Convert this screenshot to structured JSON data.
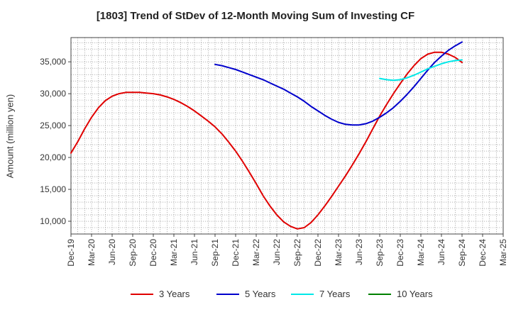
{
  "chart_data": {
    "type": "line",
    "title": "[1803]  Trend of StDev of 12-Month Moving Sum of Investing CF",
    "xlabel": "",
    "ylabel": "Amount (million yen)",
    "ylim": [
      8000,
      38800
    ],
    "yticks": [
      10000,
      15000,
      20000,
      25000,
      30000,
      35000
    ],
    "ytick_labels": [
      "10,000",
      "15,000",
      "20,000",
      "25,000",
      "30,000",
      "35,000"
    ],
    "xticks": [
      "Dec-19",
      "Mar-20",
      "Jun-20",
      "Sep-20",
      "Dec-20",
      "Mar-21",
      "Jun-21",
      "Sep-21",
      "Dec-21",
      "Mar-22",
      "Jun-22",
      "Sep-22",
      "Dec-22",
      "Mar-23",
      "Jun-23",
      "Sep-23",
      "Dec-23",
      "Mar-24",
      "Jun-24",
      "Sep-24",
      "Dec-24",
      "Mar-25"
    ],
    "grid": true,
    "legend_position": "bottom",
    "series": [
      {
        "name": "3 Years",
        "color": "#e00000",
        "x": [
          "Dec-19",
          "Jan-20",
          "Feb-20",
          "Mar-20",
          "Apr-20",
          "May-20",
          "Jun-20",
          "Jul-20",
          "Aug-20",
          "Sep-20",
          "Oct-20",
          "Nov-20",
          "Dec-20",
          "Jan-21",
          "Feb-21",
          "Mar-21",
          "Apr-21",
          "May-21",
          "Jun-21",
          "Jul-21",
          "Aug-21",
          "Sep-21",
          "Oct-21",
          "Nov-21",
          "Dec-21",
          "Jan-22",
          "Feb-22",
          "Mar-22",
          "Apr-22",
          "May-22",
          "Jun-22",
          "Jul-22",
          "Aug-22",
          "Sep-22",
          "Oct-22",
          "Nov-22",
          "Dec-22",
          "Jan-23",
          "Feb-23",
          "Mar-23",
          "Apr-23",
          "May-23",
          "Jun-23",
          "Jul-23",
          "Aug-23",
          "Sep-23",
          "Oct-23",
          "Nov-23",
          "Dec-23",
          "Jan-24",
          "Feb-24",
          "Mar-24",
          "Apr-24",
          "May-24",
          "Jun-24",
          "Jul-24",
          "Aug-24",
          "Sep-24"
        ],
        "values": [
          20700,
          22500,
          24500,
          26300,
          27800,
          28900,
          29600,
          30000,
          30200,
          30200,
          30200,
          30100,
          30000,
          29800,
          29500,
          29100,
          28600,
          28000,
          27300,
          26500,
          25700,
          24800,
          23700,
          22400,
          21000,
          19400,
          17700,
          15900,
          14000,
          12400,
          11000,
          9900,
          9200,
          8800,
          9000,
          9800,
          11000,
          12400,
          13900,
          15500,
          17100,
          18800,
          20600,
          22500,
          24500,
          26500,
          28300,
          30000,
          31600,
          33100,
          34400,
          35500,
          36200,
          36500,
          36500,
          36200,
          35700,
          34900
        ]
      },
      {
        "name": "5 Years",
        "color": "#0000cc",
        "x": [
          "Sep-21",
          "Oct-21",
          "Nov-21",
          "Dec-21",
          "Jan-22",
          "Feb-22",
          "Mar-22",
          "Apr-22",
          "May-22",
          "Jun-22",
          "Jul-22",
          "Aug-22",
          "Sep-22",
          "Oct-22",
          "Nov-22",
          "Dec-22",
          "Jan-23",
          "Feb-23",
          "Mar-23",
          "Apr-23",
          "May-23",
          "Jun-23",
          "Jul-23",
          "Aug-23",
          "Sep-23",
          "Oct-23",
          "Nov-23",
          "Dec-23",
          "Jan-24",
          "Feb-24",
          "Mar-24",
          "Apr-24",
          "May-24",
          "Jun-24",
          "Jul-24",
          "Aug-24",
          "Sep-24"
        ],
        "values": [
          34600,
          34400,
          34100,
          33800,
          33400,
          33000,
          32600,
          32200,
          31700,
          31200,
          30700,
          30100,
          29500,
          28800,
          28000,
          27300,
          26600,
          26000,
          25500,
          25200,
          25100,
          25100,
          25300,
          25700,
          26300,
          27000,
          27800,
          28800,
          29900,
          31100,
          32400,
          33700,
          34900,
          35900,
          36800,
          37500,
          38100
        ]
      },
      {
        "name": "7 Years",
        "color": "#00e8e8",
        "x": [
          "Sep-23",
          "Oct-23",
          "Nov-23",
          "Dec-23",
          "Jan-24",
          "Feb-24",
          "Mar-24",
          "Apr-24",
          "May-24",
          "Jun-24",
          "Jul-24",
          "Aug-24",
          "Sep-24"
        ],
        "values": [
          32400,
          32200,
          32100,
          32200,
          32500,
          32900,
          33400,
          33900,
          34300,
          34700,
          35000,
          35200,
          35300
        ]
      },
      {
        "name": "10 Years",
        "color": "#008000",
        "x": [],
        "values": []
      }
    ]
  }
}
